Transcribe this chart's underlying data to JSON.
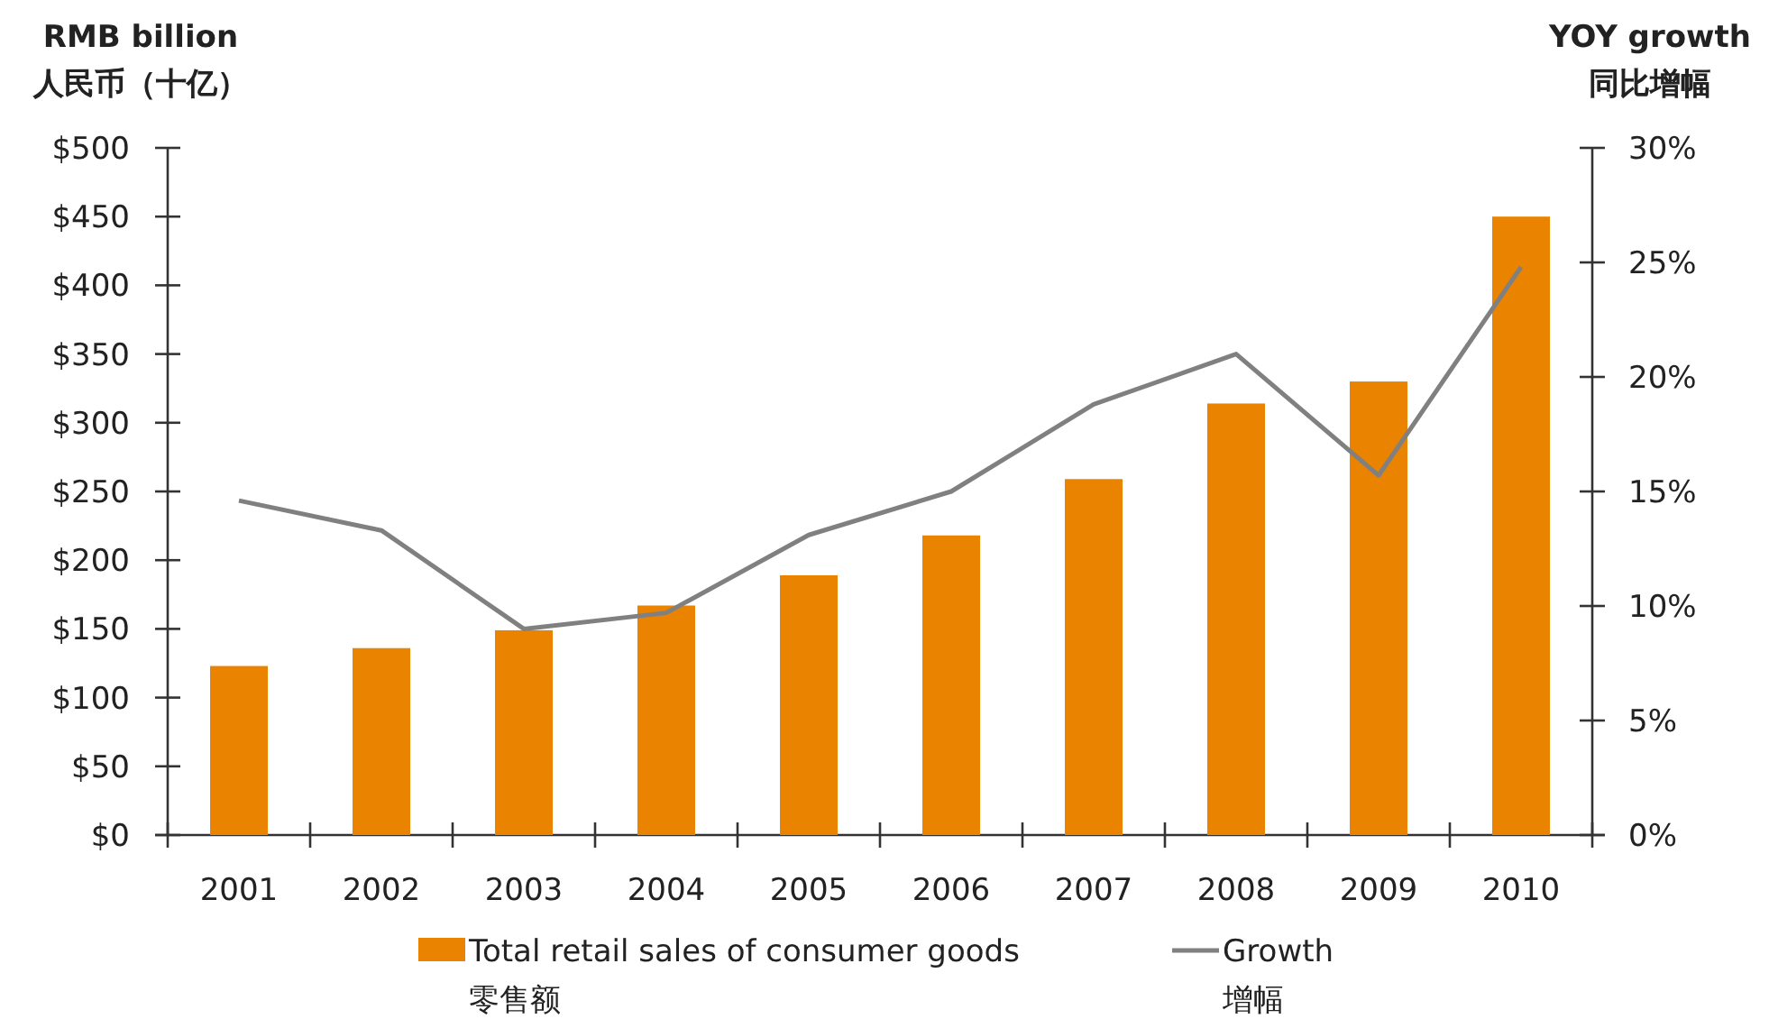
{
  "chart_data": {
    "type": "bar",
    "ylabel": "RMB billion\n人民币（十亿）",
    "y2label": "YOY growth\n同比增幅",
    "categories": [
      "2001",
      "2002",
      "2003",
      "2004",
      "2005",
      "2006",
      "2007",
      "2008",
      "2009",
      "2010"
    ],
    "series": [
      {
        "name": "Total retail sales of consumer goods\n零售额",
        "color": "#e98300",
        "values": [
          123,
          136,
          149,
          167,
          189,
          218,
          259,
          314,
          330,
          450
        ]
      },
      {
        "name": "Growth\n增幅",
        "type": "line",
        "axis": "y2",
        "color": "#808080",
        "values": [
          14.6,
          13.3,
          9.0,
          9.7,
          13.1,
          15.0,
          18.8,
          21.0,
          15.7,
          24.8
        ]
      }
    ],
    "ylim": [
      0,
      500
    ],
    "yticks": [
      {
        "value": 0,
        "label": "$0"
      },
      {
        "value": 50,
        "label": "$50"
      },
      {
        "value": 100,
        "label": "$100"
      },
      {
        "value": 150,
        "label": "$150"
      },
      {
        "value": 200,
        "label": "$200"
      },
      {
        "value": 250,
        "label": "$250"
      },
      {
        "value": 300,
        "label": "$300"
      },
      {
        "value": 350,
        "label": "$350"
      },
      {
        "value": 400,
        "label": "$400"
      },
      {
        "value": 450,
        "label": "$450"
      },
      {
        "value": 500,
        "label": "$500"
      }
    ],
    "y2lim": [
      0,
      30
    ],
    "y2ticks": [
      {
        "value": 0,
        "label": "0%"
      },
      {
        "value": 5,
        "label": "5%"
      },
      {
        "value": 10,
        "label": "10%"
      },
      {
        "value": 15,
        "label": "15%"
      },
      {
        "value": 20,
        "label": "20%"
      },
      {
        "value": 25,
        "label": "25%"
      },
      {
        "value": 30,
        "label": "30%"
      }
    ],
    "legend": "bottom"
  }
}
